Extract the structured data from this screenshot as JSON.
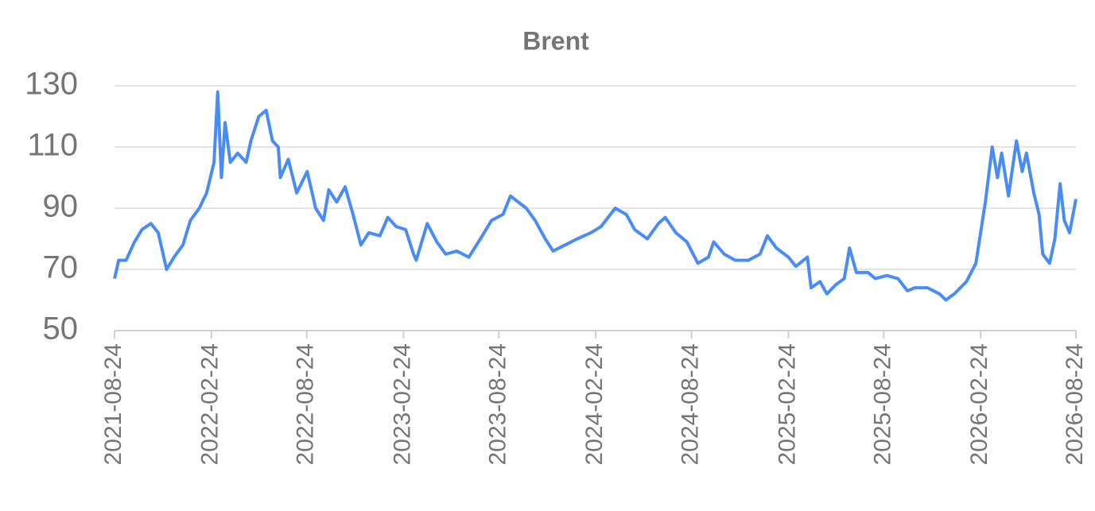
{
  "chart_data": {
    "type": "line",
    "title": "Brent",
    "x": [
      "2021-08-24",
      "2021-09-01",
      "2021-09-15",
      "2021-10-01",
      "2021-10-15",
      "2021-11-01",
      "2021-11-15",
      "2021-12-01",
      "2021-12-15",
      "2022-01-01",
      "2022-01-15",
      "2022-02-01",
      "2022-02-15",
      "2022-03-01",
      "2022-03-08",
      "2022-03-15",
      "2022-03-22",
      "2022-04-01",
      "2022-04-15",
      "2022-05-01",
      "2022-05-10",
      "2022-05-25",
      "2022-06-08",
      "2022-06-20",
      "2022-07-01",
      "2022-07-05",
      "2022-07-20",
      "2022-08-05",
      "2022-08-25",
      "2022-09-10",
      "2022-09-25",
      "2022-10-05",
      "2022-10-20",
      "2022-11-05",
      "2022-11-20",
      "2022-12-05",
      "2022-12-20",
      "2023-01-10",
      "2023-01-25",
      "2023-02-10",
      "2023-02-28",
      "2023-03-15",
      "2023-03-20",
      "2023-04-10",
      "2023-04-28",
      "2023-05-15",
      "2023-06-05",
      "2023-06-28",
      "2023-07-20",
      "2023-08-10",
      "2023-09-01",
      "2023-09-15",
      "2023-09-30",
      "2023-10-15",
      "2023-11-01",
      "2023-11-20",
      "2023-12-05",
      "2023-12-28",
      "2024-01-20",
      "2024-02-15",
      "2024-03-05",
      "2024-04-01",
      "2024-04-22",
      "2024-05-08",
      "2024-06-01",
      "2024-06-22",
      "2024-07-05",
      "2024-07-25",
      "2024-08-15",
      "2024-09-05",
      "2024-09-25",
      "2024-10-05",
      "2024-10-25",
      "2024-11-15",
      "2024-12-10",
      "2025-01-01",
      "2025-01-15",
      "2025-02-01",
      "2025-02-24",
      "2025-03-10",
      "2025-04-01",
      "2025-04-08",
      "2025-04-25",
      "2025-05-08",
      "2025-05-25",
      "2025-06-10",
      "2025-06-20",
      "2025-07-03",
      "2025-07-25",
      "2025-08-08",
      "2025-08-30",
      "2025-09-20",
      "2025-10-08",
      "2025-10-22",
      "2025-11-15",
      "2025-12-08",
      "2025-12-20",
      "2026-01-05",
      "2026-01-28",
      "2026-02-15",
      "2026-03-05",
      "2026-03-18",
      "2026-03-28",
      "2026-04-05",
      "2026-04-18",
      "2026-05-03",
      "2026-05-14",
      "2026-05-22",
      "2026-06-05",
      "2026-06-15",
      "2026-06-22",
      "2026-07-05",
      "2026-07-15",
      "2026-07-25",
      "2026-08-02",
      "2026-08-12",
      "2026-08-24"
    ],
    "series": [
      {
        "name": "Brent",
        "color": "#4a8cf7",
        "values": [
          67,
          73,
          73,
          79,
          83,
          85,
          82,
          70,
          74,
          78,
          86,
          90,
          95,
          105,
          128,
          100,
          118,
          105,
          108,
          105,
          112,
          120,
          122,
          112,
          110,
          100,
          106,
          95,
          102,
          90,
          86,
          96,
          92,
          97,
          88,
          78,
          82,
          81,
          87,
          84,
          83,
          75,
          73,
          85,
          79,
          75,
          76,
          74,
          80,
          86,
          88,
          94,
          92,
          90,
          86,
          80,
          76,
          78,
          80,
          82,
          84,
          90,
          88,
          83,
          80,
          85,
          87,
          82,
          79,
          72,
          74,
          79,
          75,
          73,
          73,
          75,
          81,
          77,
          74,
          71,
          74,
          64,
          66,
          62,
          65,
          67,
          77,
          69,
          69,
          67,
          68,
          67,
          63,
          64,
          64,
          62,
          60,
          62,
          66,
          72,
          92,
          110,
          100,
          108,
          94,
          112,
          102,
          108,
          95,
          88,
          75,
          72,
          80,
          98,
          86,
          82,
          93
        ]
      }
    ],
    "xlim": [
      "2021-08-24",
      "2026-08-24"
    ],
    "xticks": [
      "2021-08-24",
      "2022-02-24",
      "2022-08-24",
      "2023-02-24",
      "2023-08-24",
      "2024-02-24",
      "2024-08-24",
      "2025-02-24",
      "2025-08-24",
      "2026-02-24",
      "2026-08-24"
    ],
    "ylim": [
      50,
      130
    ],
    "yticks": [
      50,
      70,
      90,
      110,
      130
    ],
    "grid": true
  }
}
